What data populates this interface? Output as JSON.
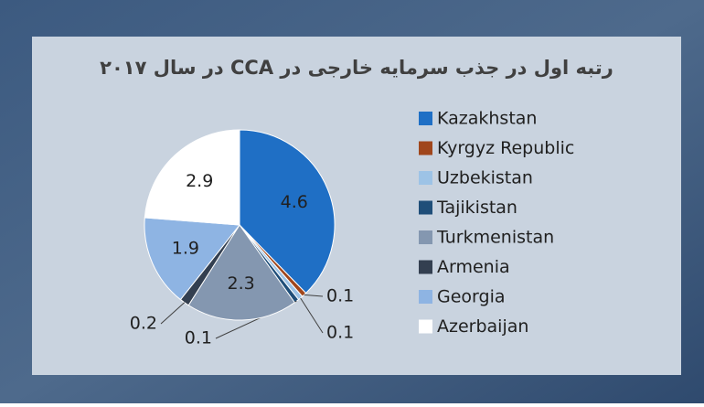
{
  "chart_data": {
    "type": "pie",
    "title": "رتبه اول در جذب سرمایه خارجی در CCA در سال ۲۰۱۷",
    "categories": [
      "Kazakhstan",
      "Kyrgyz Republic",
      "Uzbekistan",
      "Tajikistan",
      "Turkmenistan",
      "Armenia",
      "Georgia",
      "Azerbaijan"
    ],
    "values": [
      4.6,
      0.1,
      0.1,
      0.1,
      2.3,
      0.2,
      1.9,
      2.9
    ],
    "colors": [
      "#1f6fc5",
      "#a0461c",
      "#9dc3e6",
      "#1f4e79",
      "#8497b0",
      "#333f50",
      "#8eb4e3",
      "#ffffff"
    ],
    "legend": "right"
  }
}
